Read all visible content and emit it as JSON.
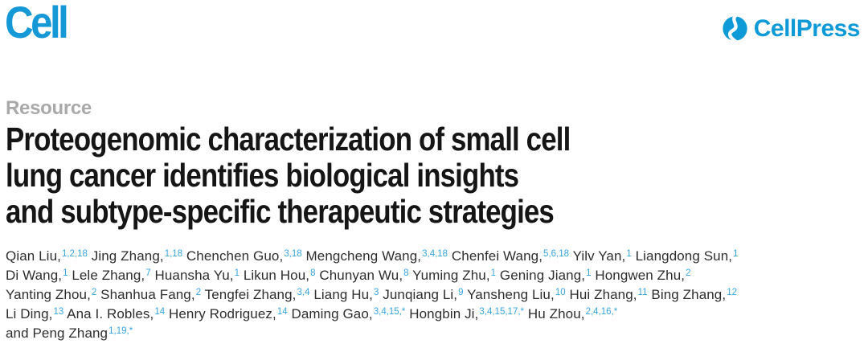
{
  "branding": {
    "journal_logo_text": "Cell",
    "publisher_name": "CellPress",
    "icon": "cellpress-swirl-icon",
    "brand_blue": "#0d9ad7",
    "cell_logo_blue": "#1598d6",
    "superscript_blue": "#38a5dc",
    "kicker_gray": "#a9a9a9"
  },
  "article": {
    "type_label": "Resource",
    "title_lines": [
      "Proteogenomic characterization of small cell",
      "lung cancer identifies biological insights",
      "and subtype-specific therapeutic strategies"
    ]
  },
  "authors": {
    "lines": [
      [
        {
          "name": "Qian Liu,",
          "sup": "1,2,18"
        },
        {
          "name": "Jing Zhang,",
          "sup": "1,18"
        },
        {
          "name": "Chenchen Guo,",
          "sup": "3,18"
        },
        {
          "name": "Mengcheng Wang,",
          "sup": "3,4,18"
        },
        {
          "name": "Chenfei Wang,",
          "sup": "5,6,18"
        },
        {
          "name": "Yilv Yan,",
          "sup": "1"
        },
        {
          "name": "Liangdong Sun,",
          "sup": "1"
        }
      ],
      [
        {
          "name": "Di Wang,",
          "sup": "1"
        },
        {
          "name": "Lele Zhang,",
          "sup": "7"
        },
        {
          "name": "Huansha Yu,",
          "sup": "1"
        },
        {
          "name": "Likun Hou,",
          "sup": "8"
        },
        {
          "name": "Chunyan Wu,",
          "sup": "8"
        },
        {
          "name": "Yuming Zhu,",
          "sup": "1"
        },
        {
          "name": "Gening Jiang,",
          "sup": "1"
        },
        {
          "name": "Hongwen Zhu,",
          "sup": "2"
        }
      ],
      [
        {
          "name": "Yanting Zhou,",
          "sup": "2"
        },
        {
          "name": "Shanhua Fang,",
          "sup": "2"
        },
        {
          "name": "Tengfei Zhang,",
          "sup": "3,4"
        },
        {
          "name": "Liang Hu,",
          "sup": "3"
        },
        {
          "name": "Junqiang Li,",
          "sup": "9"
        },
        {
          "name": "Yansheng Liu,",
          "sup": "10"
        },
        {
          "name": "Hui Zhang,",
          "sup": "11"
        },
        {
          "name": "Bing Zhang,",
          "sup": "12"
        }
      ],
      [
        {
          "name": "Li Ding,",
          "sup": "13"
        },
        {
          "name": "Ana I. Robles,",
          "sup": "14"
        },
        {
          "name": "Henry Rodriguez,",
          "sup": "14"
        },
        {
          "name": "Daming Gao,",
          "sup": "3,4,15,*"
        },
        {
          "name": "Hongbin Ji,",
          "sup": "3,4,15,17,*"
        },
        {
          "name": "Hu Zhou,",
          "sup": "2,4,16,*"
        }
      ],
      [
        {
          "name": "and Peng Zhang",
          "sup": "1,19,*"
        }
      ]
    ]
  }
}
